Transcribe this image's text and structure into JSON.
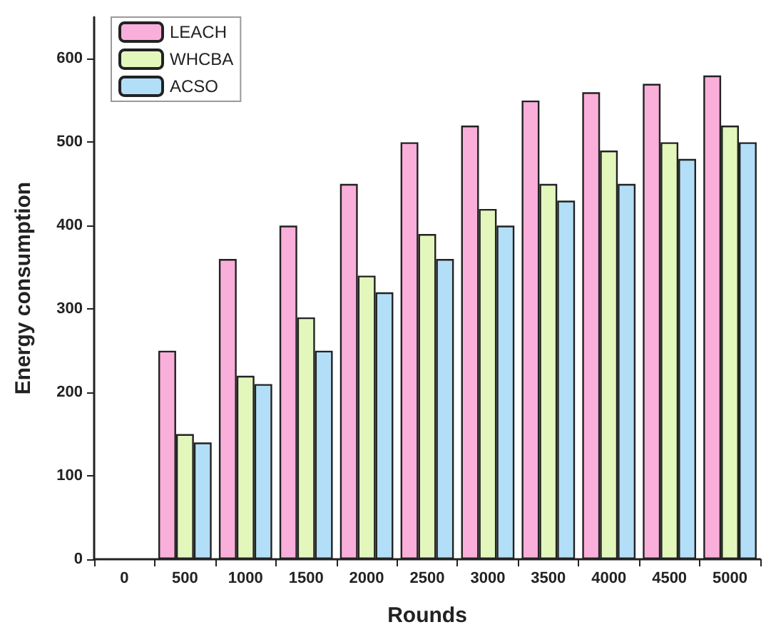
{
  "chart_data": {
    "type": "bar",
    "xlabel": "Rounds",
    "ylabel": "Energy consumption",
    "categories": [
      "0",
      "500",
      "1000",
      "1500",
      "2000",
      "2500",
      "3000",
      "3500",
      "4000",
      "4500",
      "5000"
    ],
    "series": [
      {
        "name": "LEACH",
        "color": "#f9afd9",
        "values": [
          null,
          250,
          360,
          400,
          450,
          500,
          520,
          550,
          560,
          570,
          580
        ]
      },
      {
        "name": "WHCBA",
        "color": "#e3f7bd",
        "values": [
          null,
          150,
          220,
          290,
          340,
          390,
          420,
          450,
          490,
          500,
          520
        ]
      },
      {
        "name": "ACSO",
        "color": "#b3def7",
        "values": [
          null,
          140,
          210,
          250,
          320,
          360,
          400,
          430,
          450,
          480,
          500
        ]
      }
    ],
    "ylim": [
      0,
      650
    ],
    "yticks": [
      0,
      100,
      200,
      300,
      400,
      500,
      600
    ],
    "grid": false,
    "legend": "top left"
  }
}
